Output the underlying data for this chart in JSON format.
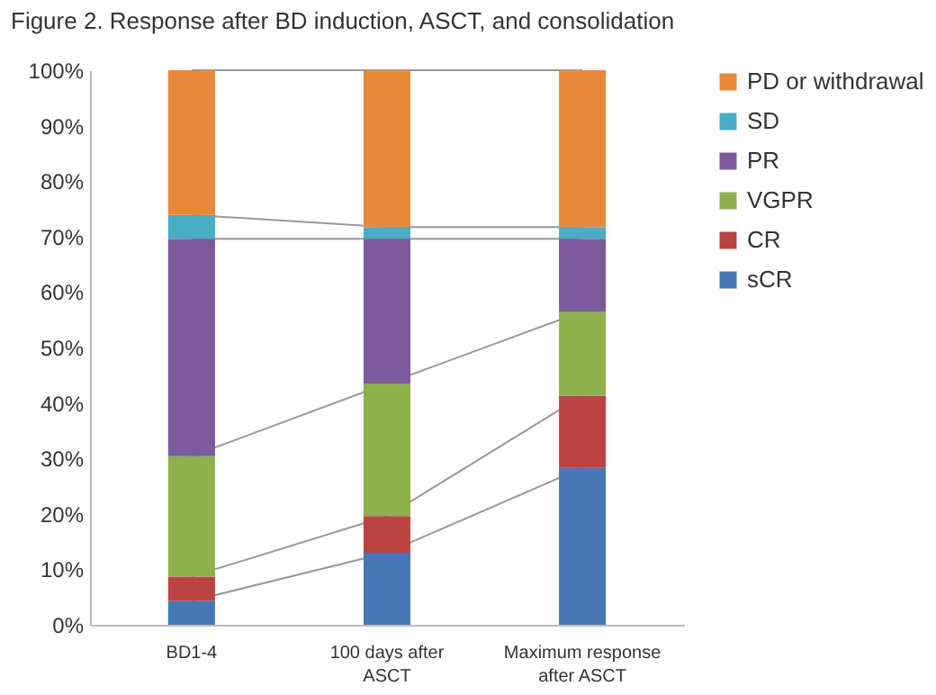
{
  "chart_data": {
    "type": "bar",
    "title": "Figure 2. Response after BD induction, ASCT, and consolidation",
    "categories": [
      "BD1-4",
      "100 days after ASCT",
      "Maximum response after ASCT"
    ],
    "stacked": true,
    "series": [
      {
        "name": "sCR",
        "color": "#4577b5",
        "values": [
          4.3,
          13,
          28.3
        ]
      },
      {
        "name": "CR",
        "color": "#bb4442",
        "values": [
          4.4,
          6.6,
          13
        ]
      },
      {
        "name": "VGPR",
        "color": "#8fb04f",
        "values": [
          21.7,
          23.9,
          15.2
        ]
      },
      {
        "name": "PR",
        "color": "#7b5b9c",
        "values": [
          39.2,
          26.1,
          13.1
        ]
      },
      {
        "name": "SD",
        "color": "#4bacc6",
        "values": [
          4.3,
          2.1,
          2.1
        ]
      },
      {
        "name": "PD or withdrawal",
        "color": "#e8893a",
        "values": [
          26.1,
          28.3,
          28.3
        ]
      }
    ],
    "ylim": [
      0,
      100
    ],
    "yticks": [
      {
        "value": 0,
        "label": "0%"
      },
      {
        "value": 10,
        "label": "10%"
      },
      {
        "value": 20,
        "label": "20%"
      },
      {
        "value": 30,
        "label": "30%"
      },
      {
        "value": 40,
        "label": "40%"
      },
      {
        "value": 50,
        "label": "50%"
      },
      {
        "value": 60,
        "label": "60%"
      },
      {
        "value": 70,
        "label": "70%"
      },
      {
        "value": 80,
        "label": "80%"
      },
      {
        "value": 90,
        "label": "90%"
      },
      {
        "value": 100,
        "label": "100%"
      }
    ],
    "grid": false,
    "legend": "right"
  }
}
